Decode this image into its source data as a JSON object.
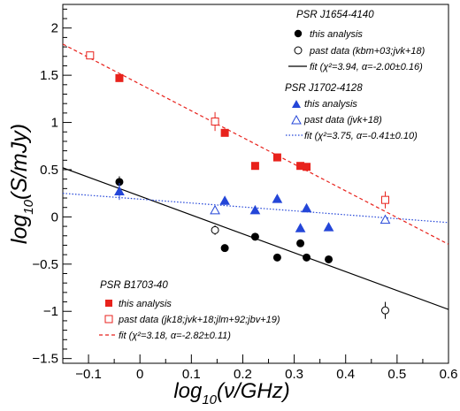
{
  "chart_data": {
    "type": "scatter",
    "xlabel": "log10(ν/GHz)",
    "ylabel": "log10(S/mJy)",
    "xlim": [
      -0.15,
      0.6
    ],
    "ylim": [
      -1.55,
      2.25
    ],
    "x_ticks": [
      -0.1,
      0,
      0.1,
      0.2,
      0.3,
      0.4,
      0.5,
      0.6
    ],
    "x_tick_labels": [
      "−0.1",
      "0",
      "0.1",
      "0.2",
      "0.3",
      "0.4",
      "0.5",
      "0.6"
    ],
    "y_ticks": [
      -1.5,
      -1,
      -0.5,
      0,
      0.5,
      1,
      1.5,
      2
    ],
    "y_tick_labels": [
      "−1.5",
      "−1",
      "−0.5",
      "0",
      "0.5",
      "1",
      "1.5",
      "2"
    ],
    "axis_title_parts": {
      "x_main": "log",
      "x_sub": "10",
      "x_rest": "(ν/GHz)",
      "y_main": "log",
      "y_sub": "10",
      "y_rest": "(S/mJy)"
    },
    "pulsars": [
      {
        "name": "PSR J1654-4140",
        "color": "#000000",
        "marker": "circle",
        "analysis_label": "this analysis",
        "past_label": "past data (kbm+03;jvk+18)",
        "fit_label": "fit (χ²=3.94, α=-2.00±0.16)",
        "fit_style": "solid",
        "fit_line": [
          [
            -0.15,
            0.52
          ],
          [
            0.6,
            -0.98
          ]
        ],
        "analysis_points": [
          {
            "x": -0.04,
            "y": 0.37,
            "err": 0.06
          },
          {
            "x": 0.165,
            "y": -0.33
          },
          {
            "x": 0.224,
            "y": -0.21
          },
          {
            "x": 0.267,
            "y": -0.43
          },
          {
            "x": 0.312,
            "y": -0.28
          },
          {
            "x": 0.324,
            "y": -0.43
          },
          {
            "x": 0.367,
            "y": -0.45
          }
        ],
        "past_points": [
          {
            "x": 0.146,
            "y": -0.14,
            "err": 0.05
          },
          {
            "x": 0.477,
            "y": -0.99,
            "err": 0.09
          }
        ]
      },
      {
        "name": "PSR J1702-4128",
        "color": "#2446d8",
        "marker": "triangle",
        "analysis_label": "this analysis",
        "past_label": "past data (jvk+18)",
        "fit_label": "fit (χ²=3.75, α=-0.41±0.10)",
        "fit_style": "dotted",
        "fit_line": [
          [
            -0.15,
            0.25
          ],
          [
            0.6,
            -0.06
          ]
        ],
        "analysis_points": [
          {
            "x": -0.04,
            "y": 0.27,
            "err": 0.09
          },
          {
            "x": 0.165,
            "y": 0.17
          },
          {
            "x": 0.224,
            "y": 0.07
          },
          {
            "x": 0.267,
            "y": 0.19
          },
          {
            "x": 0.312,
            "y": -0.12
          },
          {
            "x": 0.324,
            "y": 0.09
          },
          {
            "x": 0.367,
            "y": -0.11
          }
        ],
        "past_points": [
          {
            "x": 0.146,
            "y": 0.07
          },
          {
            "x": 0.477,
            "y": -0.03
          }
        ]
      },
      {
        "name": "PSR B1703-40",
        "color": "#e8221c",
        "marker": "square",
        "analysis_label": "this analysis",
        "past_label": "past data (jk18;jvk+18;jlm+92;jbv+19)",
        "fit_label": "fit (χ²=3.18, α=-2.82±0.11)",
        "fit_style": "dashed",
        "fit_line": [
          [
            -0.15,
            1.83
          ],
          [
            0.6,
            -0.29
          ]
        ],
        "analysis_points": [
          {
            "x": -0.04,
            "y": 1.47
          },
          {
            "x": 0.165,
            "y": 0.89
          },
          {
            "x": 0.224,
            "y": 0.54
          },
          {
            "x": 0.267,
            "y": 0.63
          },
          {
            "x": 0.312,
            "y": 0.54
          },
          {
            "x": 0.324,
            "y": 0.53
          }
        ],
        "past_points": [
          {
            "x": -0.097,
            "y": 1.71
          },
          {
            "x": 0.146,
            "y": 1.01,
            "err": 0.1
          },
          {
            "x": 0.477,
            "y": 0.18,
            "err": 0.09
          }
        ]
      }
    ]
  }
}
